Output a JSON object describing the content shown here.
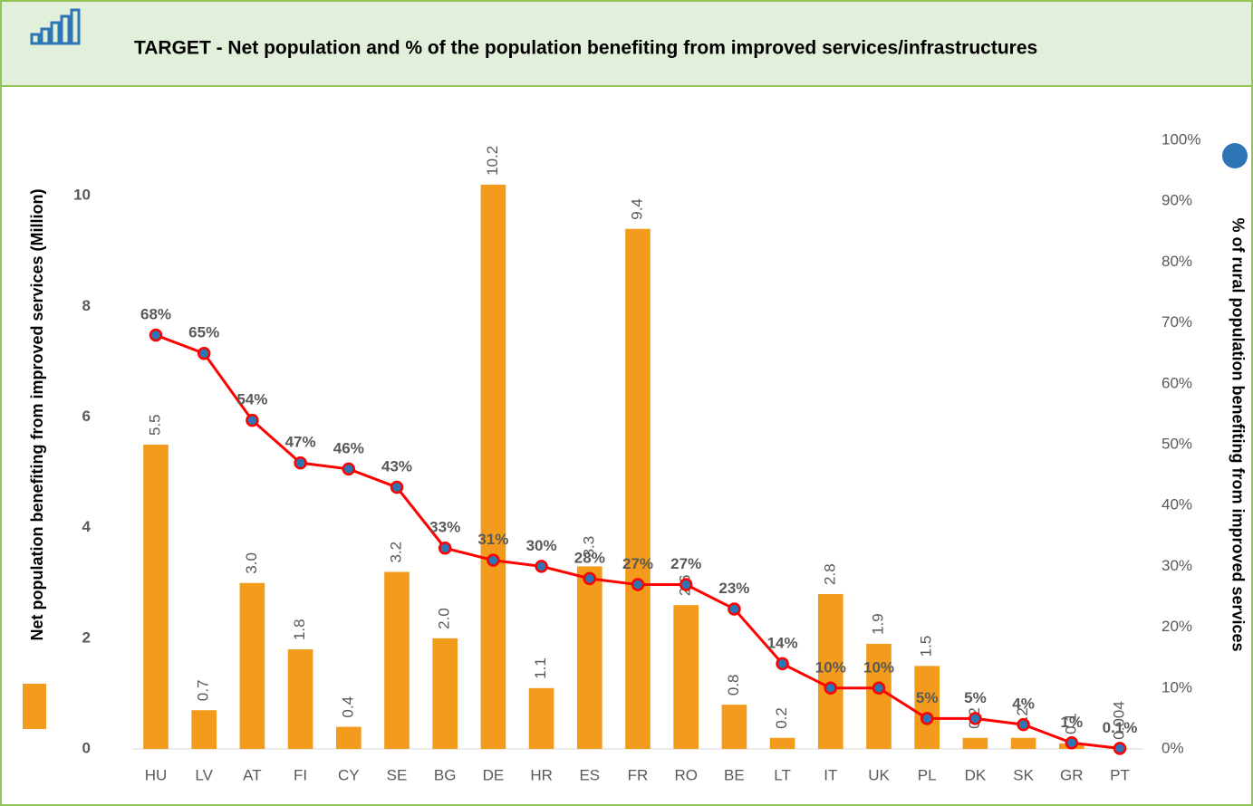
{
  "chart_data": {
    "type": "bar",
    "title": "TARGET -  Net population and % of the population benefiting from improved services/infrastructures",
    "categories": [
      "HU",
      "LV",
      "AT",
      "FI",
      "CY",
      "SE",
      "BG",
      "DE",
      "HR",
      "ES",
      "FR",
      "RO",
      "BE",
      "LT",
      "IT",
      "UK",
      "PL",
      "DK",
      "SK",
      "GR",
      "PT"
    ],
    "y_label": "Net population benefiting from improved services (Million)",
    "y2_label": "% of rural population benefiting from improved services",
    "ylim": [
      0,
      11
    ],
    "yticks": [
      0,
      2,
      4,
      6,
      8,
      10
    ],
    "y2lim": [
      0,
      100
    ],
    "y2ticks": [
      {
        "value": 0,
        "label": "0%"
      },
      {
        "value": 10,
        "label": "10%"
      },
      {
        "value": 20,
        "label": "20%"
      },
      {
        "value": 30,
        "label": "30%"
      },
      {
        "value": 40,
        "label": "40%"
      },
      {
        "value": 50,
        "label": "50%"
      },
      {
        "value": 60,
        "label": "60%"
      },
      {
        "value": 70,
        "label": "70%"
      },
      {
        "value": 80,
        "label": "80%"
      },
      {
        "value": 90,
        "label": "90%"
      },
      {
        "value": 100,
        "label": "100%"
      }
    ],
    "series": [
      {
        "type": "bar",
        "color": "#f29b1c",
        "values": [
          5.5,
          0.7,
          3.0,
          1.8,
          0.4,
          3.2,
          2.0,
          10.2,
          1.1,
          3.3,
          9.4,
          2.6,
          0.8,
          0.2,
          2.8,
          1.9,
          1.5,
          0.2,
          0.2,
          0.1,
          0.004
        ],
        "value_labels": [
          "5.5",
          "0.7",
          "3.0",
          "1.8",
          "0.4",
          "3.2",
          "2.0",
          "10.2",
          "1.1",
          "3.3",
          "9.4",
          "2.6",
          "0.8",
          "0.2",
          "2.8",
          "1.9",
          "1.5",
          "0.2",
          "0.2",
          "0.1",
          "0.004"
        ]
      },
      {
        "type": "line",
        "axis": "y2",
        "color": "#ff0000",
        "marker_color": "#2e75b6",
        "values": [
          68,
          65,
          54,
          47,
          46,
          43,
          33,
          31,
          30,
          28,
          27,
          27,
          23,
          14,
          10,
          10,
          5,
          5,
          4,
          1,
          0.1
        ],
        "value_labels": [
          "68%",
          "65%",
          "54%",
          "47%",
          "46%",
          "43%",
          "33%",
          "31%",
          "30%",
          "28%",
          "27%",
          "27%",
          "23%",
          "14%",
          "10%",
          "10%",
          "5%",
          "5%",
          "4%",
          "1%",
          "0.1%"
        ]
      }
    ]
  }
}
